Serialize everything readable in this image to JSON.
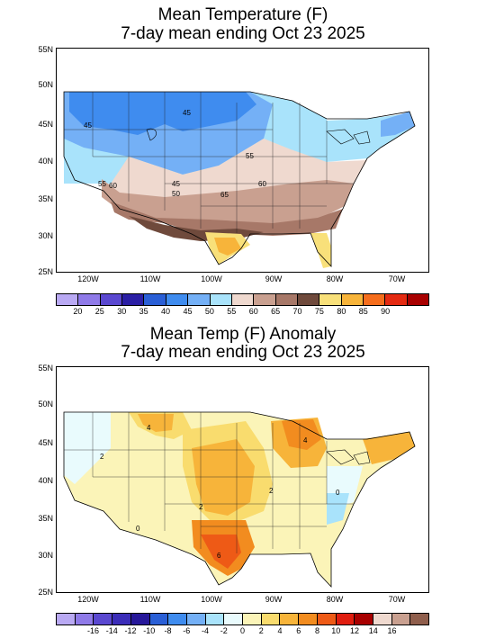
{
  "top": {
    "title_line1": "Mean Temperature (F)",
    "title_line2": "7-day mean ending Oct 23 2025",
    "lat_labels": [
      "55N",
      "50N",
      "45N",
      "40N",
      "35N",
      "30N",
      "25N"
    ],
    "lon_labels": [
      "120W",
      "110W",
      "100W",
      "90W",
      "80W",
      "70W"
    ],
    "contour_labels": [
      "45",
      "45",
      "55",
      "45",
      "55",
      "60",
      "50",
      "65",
      "60"
    ],
    "colorbar_colors": [
      "#b9a9f3",
      "#8f7ae8",
      "#5a48d0",
      "#2b1fa5",
      "#2a5fd6",
      "#3f8cef",
      "#74b0f6",
      "#a9e3fb",
      "#efd9cf",
      "#c9a090",
      "#a77868",
      "#6f4a3c",
      "#f8e07a",
      "#f7b43a",
      "#f56d1c",
      "#e42a11",
      "#a80000"
    ],
    "colorbar_ticks": [
      "20",
      "25",
      "30",
      "35",
      "40",
      "45",
      "50",
      "55",
      "60",
      "65",
      "70",
      "75",
      "80",
      "85",
      "90"
    ]
  },
  "bottom": {
    "title_line1": "Mean Temp (F) Anomaly",
    "title_line2": "7-day mean ending Oct 23 2025",
    "lat_labels": [
      "55N",
      "50N",
      "45N",
      "40N",
      "35N",
      "30N",
      "25N"
    ],
    "lon_labels": [
      "120W",
      "110W",
      "100W",
      "90W",
      "80W",
      "70W"
    ],
    "contour_labels": [
      "2",
      "4",
      "0",
      "2",
      "2",
      "6",
      "4",
      "0"
    ],
    "colorbar_colors": [
      "#b9a9f3",
      "#8f7ae8",
      "#5a48d0",
      "#3b2db8",
      "#27189a",
      "#2a5fd6",
      "#3f8cef",
      "#74b0f6",
      "#a9e3fb",
      "#e9fbfd",
      "#fbf4b8",
      "#f9dc6e",
      "#f7b43a",
      "#f28c1f",
      "#ee5a16",
      "#e01d0f",
      "#a80000",
      "#efd9cf",
      "#c9a090",
      "#8f5e4c"
    ],
    "colorbar_ticks": [
      "-16",
      "-14",
      "-12",
      "-10",
      "-8",
      "-6",
      "-4",
      "-2",
      "0",
      "2",
      "4",
      "6",
      "8",
      "10",
      "12",
      "14",
      "16"
    ]
  }
}
